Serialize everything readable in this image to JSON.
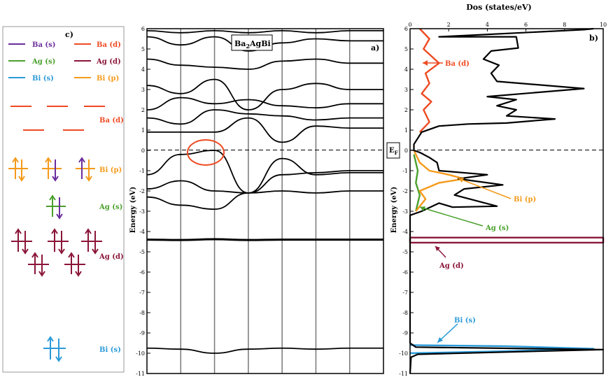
{
  "panel_c": {
    "label": "c)",
    "legend": [
      {
        "text": "Ba (s)",
        "color": "#6a2d9c"
      },
      {
        "text": "Ba (d)",
        "color": "#ee4a22"
      },
      {
        "text": "Ag (s)",
        "color": "#4aa02c"
      },
      {
        "text": "Ag (d)",
        "color": "#8a1538"
      },
      {
        "text": "Bi (s)",
        "color": "#2a9ad8"
      },
      {
        "text": "Bi (p)",
        "color": "#f59a1a"
      }
    ],
    "levels": {
      "ba_d": "Ba (d)",
      "bi_p": "Bi (p)",
      "ag_s": "Ag (s)",
      "ag_d": "Ag (d)",
      "bi_s": "Bi (s)"
    }
  },
  "panel_a": {
    "label": "a)",
    "compound": "Ba",
    "compound_sub": "2",
    "compound_rest": "AgBi",
    "ylabel": "Energy (eV)"
  },
  "panel_b": {
    "label": "b)",
    "title": "Dos (states/eV)",
    "ylabel": "Energy (eV)",
    "fermi_main": "E",
    "fermi_sub": "F",
    "annotations": {
      "ba_d": "Ba (d)",
      "bi_p": "Bi (p)",
      "ag_s": "Ag (s)",
      "ag_d": "Ag (d)",
      "bi_s": "Bi (s)"
    }
  },
  "chart_data": [
    {
      "type": "line",
      "title": "",
      "xlabel": "",
      "ylabel": "Energy (eV)",
      "ylim": [
        -11,
        6
      ],
      "yticks": [
        6,
        5,
        4,
        3,
        2,
        1,
        0,
        -1,
        -2,
        -3,
        -4,
        -5,
        -6,
        -7,
        -8,
        -9,
        -10,
        -11
      ],
      "fermi_level": 0,
      "high_symmetry_lines": 6,
      "series": [
        {
          "values": [
            -9.75,
            -9.8,
            -10.0,
            -9.8,
            -9.75,
            -9.8,
            -9.75
          ]
        },
        {
          "values": [
            -4.4,
            -4.42,
            -4.38,
            -4.42,
            -4.4,
            -4.4,
            -4.4
          ]
        },
        {
          "values": [
            -2.3,
            -2.7,
            -2.9,
            -2.1,
            -2.0,
            -2.1,
            -2.0
          ]
        },
        {
          "values": [
            -1.9,
            -1.5,
            -2.0,
            -2.1,
            -1.2,
            -1.1,
            -1.0
          ]
        },
        {
          "values": [
            -1.2,
            -0.2,
            0.0,
            -2.1,
            -0.4,
            -1.2,
            -1.1
          ]
        },
        {
          "values": [
            0.9,
            0.9,
            0.9,
            1.6,
            0.4,
            1.2,
            1.1
          ]
        },
        {
          "values": [
            1.6,
            1.3,
            2.0,
            1.8,
            1.7,
            1.5,
            1.6
          ]
        },
        {
          "values": [
            2.0,
            2.6,
            2.3,
            2.5,
            2.2,
            2.1,
            2.3
          ]
        },
        {
          "values": [
            3.2,
            2.8,
            3.5,
            2.0,
            3.0,
            3.3,
            3.0
          ]
        },
        {
          "values": [
            4.5,
            4.2,
            4.1,
            4.0,
            4.4,
            4.5,
            4.3
          ]
        },
        {
          "values": [
            5.6,
            5.2,
            5.6,
            4.9,
            5.3,
            5.5,
            5.4
          ]
        },
        {
          "values": [
            5.9,
            5.8,
            5.9,
            5.8,
            5.9,
            5.8,
            5.9
          ]
        }
      ]
    },
    {
      "type": "line",
      "title": "Dos (states/eV)",
      "xlabel": "",
      "ylabel": "Energy (eV)",
      "xlim": [
        0,
        10
      ],
      "xticks": [
        0,
        2,
        4,
        6,
        8,
        10
      ],
      "ylim": [
        -11,
        6
      ],
      "yticks": [
        6,
        5,
        4,
        3,
        2,
        1,
        0,
        -1,
        -2,
        -3,
        -4,
        -5,
        -6,
        -7,
        -8,
        -9,
        -10,
        -11
      ],
      "series": [
        {
          "name": "Total",
          "color": "#000000",
          "points": [
            [
              0,
              -11
            ],
            [
              0.05,
              -10.2
            ],
            [
              0.4,
              -10.05
            ],
            [
              10,
              -9.82
            ],
            [
              0.3,
              -9.7
            ],
            [
              0,
              -9.5
            ],
            [
              0,
              -3.2
            ],
            [
              0.6,
              -3.0
            ],
            [
              1.5,
              -2.6
            ],
            [
              2.2,
              -2.8
            ],
            [
              4.5,
              -2.75
            ],
            [
              2.3,
              -2.2
            ],
            [
              2.8,
              -1.9
            ],
            [
              4.8,
              -1.7
            ],
            [
              2.5,
              -1.4
            ],
            [
              4.0,
              -1.2
            ],
            [
              1.5,
              -1.0
            ],
            [
              1.4,
              -0.6
            ],
            [
              1.0,
              -0.35
            ],
            [
              0.5,
              -0.1
            ],
            [
              0.2,
              0.0
            ],
            [
              0.2,
              0.3
            ],
            [
              0.6,
              0.9
            ],
            [
              1.5,
              1.2
            ],
            [
              3.0,
              1.3
            ],
            [
              5.0,
              1.35
            ],
            [
              7.5,
              1.55
            ],
            [
              5.0,
              1.7
            ],
            [
              5.5,
              2.0
            ],
            [
              4.5,
              2.2
            ],
            [
              5.5,
              2.5
            ],
            [
              4.0,
              2.65
            ],
            [
              9.0,
              3.05
            ],
            [
              4.5,
              3.4
            ],
            [
              4.2,
              3.8
            ],
            [
              4.6,
              4.2
            ],
            [
              3.8,
              4.5
            ],
            [
              4.2,
              4.9
            ],
            [
              5.6,
              5.05
            ],
            [
              5.5,
              5.6
            ],
            [
              1.5,
              5.6
            ],
            [
              9.0,
              5.95
            ],
            [
              9.5,
              6.0
            ]
          ]
        },
        {
          "name": "Ba (d)",
          "color": "#ee4a22",
          "points": [
            [
              0.5,
              0.9
            ],
            [
              1.0,
              1.4
            ],
            [
              0.7,
              2.0
            ],
            [
              1.1,
              2.4
            ],
            [
              0.6,
              2.8
            ],
            [
              1.0,
              3.3
            ],
            [
              0.8,
              3.8
            ],
            [
              1.5,
              4.3
            ],
            [
              0.7,
              5.0
            ],
            [
              1.0,
              5.5
            ],
            [
              0.5,
              6.0
            ]
          ]
        },
        {
          "name": "Bi (p)",
          "color": "#f59a1a",
          "points": [
            [
              0.3,
              -3.0
            ],
            [
              0.8,
              -2.4
            ],
            [
              0.5,
              -2.0
            ],
            [
              1.5,
              -1.6
            ],
            [
              2.8,
              -1.4
            ],
            [
              2.0,
              -1.2
            ],
            [
              1.0,
              -1.0
            ],
            [
              0.5,
              -0.6
            ],
            [
              0.2,
              0.0
            ]
          ]
        },
        {
          "name": "Ag (s)",
          "color": "#4aa02c",
          "points": [
            [
              0.3,
              -3.0
            ],
            [
              0.5,
              -2.2
            ],
            [
              0.3,
              -1.6
            ],
            [
              0.4,
              -1.0
            ],
            [
              0.2,
              -0.2
            ]
          ]
        },
        {
          "name": "Ag (d)",
          "color": "#8a1538",
          "points": [
            [
              0,
              -4.3
            ],
            [
              10,
              -4.3
            ],
            [
              10,
              -4.55
            ],
            [
              0,
              -4.55
            ]
          ]
        },
        {
          "name": "Bi (s)",
          "color": "#2a9ad8",
          "points": [
            [
              0,
              -9.6
            ],
            [
              5,
              -9.65
            ],
            [
              9.5,
              -9.78
            ],
            [
              5,
              -9.9
            ],
            [
              0,
              -10.0
            ]
          ]
        }
      ]
    }
  ]
}
